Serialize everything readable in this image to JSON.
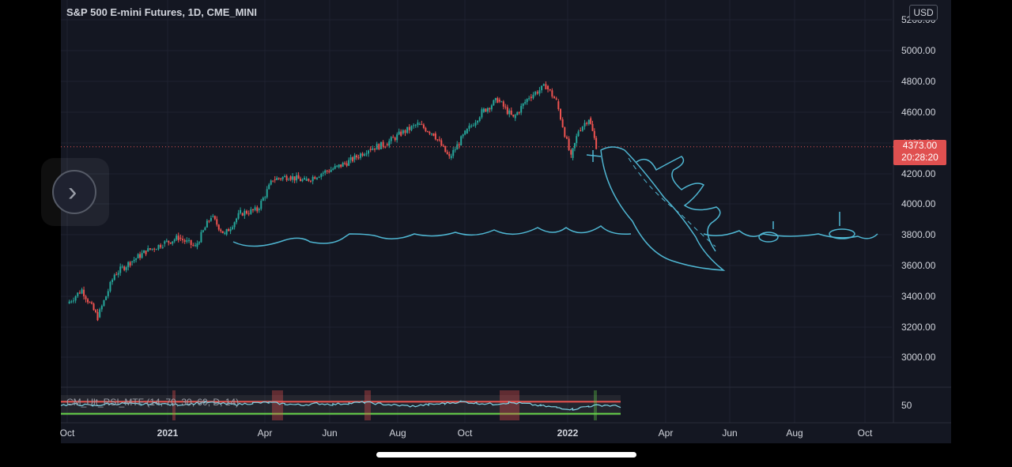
{
  "title": "S&P 500 E-mini Futures, 1D, CME_MINI",
  "currency_button": "USD",
  "last_price": "4373.00",
  "countdown": "20:28:20",
  "colors": {
    "background": "#141722",
    "up": "#26a69a",
    "down": "#ef5350",
    "drawing": "#4fb6d2",
    "price_tag": "#e05050"
  },
  "chart_data": {
    "type": "candlestick",
    "yaxis": {
      "ticks": [
        "5200.00",
        "5000.00",
        "4800.00",
        "4600.00",
        "4400.00",
        "4200.00",
        "4000.00",
        "3800.00",
        "3600.00",
        "3400.00",
        "3200.00",
        "3000.00"
      ],
      "ylim": [
        2900,
        5260
      ]
    },
    "xaxis": {
      "ticks": [
        "Oct",
        "2021",
        "Apr",
        "Jun",
        "Aug",
        "Oct",
        "2022",
        "Apr",
        "Jun",
        "Aug",
        "Oct"
      ]
    },
    "series": [
      {
        "values": [
          [
            "2020-10-01",
            3350
          ],
          [
            "2020-10-15",
            3440
          ],
          [
            "2020-10-30",
            3260
          ],
          [
            "2020-11-15",
            3540
          ],
          [
            "2020-11-30",
            3620
          ],
          [
            "2020-12-15",
            3690
          ],
          [
            "2020-12-31",
            3740
          ],
          [
            "2021-01-15",
            3780
          ],
          [
            "2021-01-31",
            3720
          ],
          [
            "2021-02-15",
            3920
          ],
          [
            "2021-02-28",
            3800
          ],
          [
            "2021-03-15",
            3940
          ],
          [
            "2021-03-31",
            3960
          ],
          [
            "2021-04-15",
            4160
          ],
          [
            "2021-04-30",
            4180
          ],
          [
            "2021-05-15",
            4150
          ],
          [
            "2021-05-31",
            4200
          ],
          [
            "2021-06-15",
            4240
          ],
          [
            "2021-06-30",
            4290
          ],
          [
            "2021-07-15",
            4360
          ],
          [
            "2021-07-31",
            4390
          ],
          [
            "2021-08-15",
            4460
          ],
          [
            "2021-08-31",
            4520
          ],
          [
            "2021-09-15",
            4460
          ],
          [
            "2021-09-30",
            4300
          ],
          [
            "2021-10-15",
            4460
          ],
          [
            "2021-10-31",
            4600
          ],
          [
            "2021-11-15",
            4680
          ],
          [
            "2021-11-30",
            4560
          ],
          [
            "2021-12-15",
            4700
          ],
          [
            "2021-12-31",
            4770
          ],
          [
            "2022-01-10",
            4670
          ],
          [
            "2022-01-24",
            4300
          ],
          [
            "2022-01-31",
            4480
          ],
          [
            "2022-02-10",
            4560
          ],
          [
            "2022-02-17",
            4380
          ]
        ]
      }
    ],
    "indicator": {
      "name": "CM_Ult_RSI_MTF (14, 70, 30, 60, D, 14)",
      "axis_tick": "50",
      "upper_level": 70,
      "lower_level": 30,
      "values": [
        55,
        58,
        52,
        60,
        62,
        57,
        63,
        56,
        59,
        68,
        61,
        57,
        64,
        66,
        60,
        55,
        62,
        58,
        63,
        67,
        60,
        54,
        50,
        57,
        62,
        70,
        64,
        59,
        66,
        61,
        52,
        44,
        36,
        50,
        55,
        48
      ]
    },
    "annotations": [
      "hand-drawn sea waterline",
      "hand-drawn sinking ship",
      "hand-drawn waving hand"
    ]
  }
}
